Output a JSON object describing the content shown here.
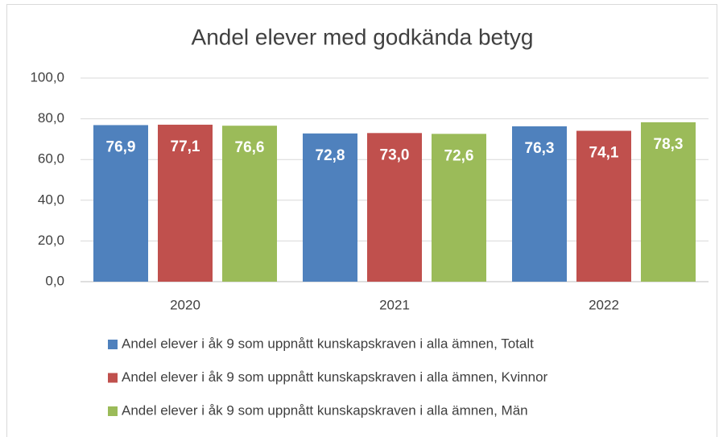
{
  "chart_data": {
    "type": "bar",
    "title": "Andel elever med godkända betyg",
    "categories": [
      "2020",
      "2021",
      "2022"
    ],
    "series": [
      {
        "name": "Andel elever i åk 9 som uppnått kunskapskraven i alla ämnen, Totalt",
        "color": "#4f81bd",
        "values": [
          76.9,
          72.8,
          76.3
        ],
        "value_labels": [
          "76,9",
          "72,8",
          "76,3"
        ]
      },
      {
        "name": "Andel elever i åk 9 som uppnått kunskapskraven i alla ämnen, Kvinnor",
        "color": "#c0504d",
        "values": [
          77.1,
          73.0,
          74.1
        ],
        "value_labels": [
          "77,1",
          "73,0",
          "74,1"
        ]
      },
      {
        "name": "Andel elever i åk 9 som uppnått kunskapskraven i alla ämnen, Män",
        "color": "#9bbb59",
        "values": [
          76.6,
          72.6,
          78.3
        ],
        "value_labels": [
          "76,6",
          "72,6",
          "78,3"
        ]
      }
    ],
    "ylim": [
      0,
      100
    ],
    "yticks": [
      {
        "value": 0,
        "label": "0,0"
      },
      {
        "value": 20,
        "label": "20,0"
      },
      {
        "value": 40,
        "label": "40,0"
      },
      {
        "value": 60,
        "label": "60,0"
      },
      {
        "value": 80,
        "label": "80,0"
      },
      {
        "value": 100,
        "label": "100,0"
      }
    ],
    "grid": true,
    "legend": "bottom"
  }
}
